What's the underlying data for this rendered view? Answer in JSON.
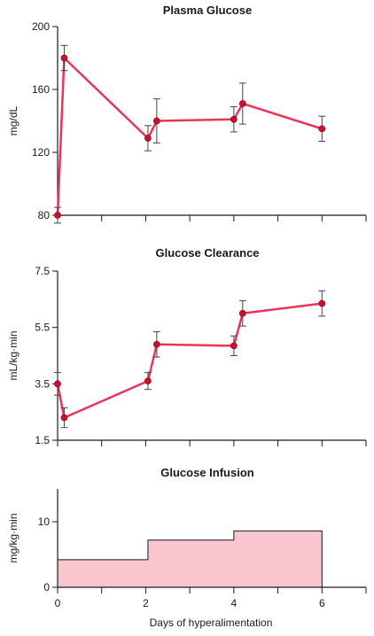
{
  "colors": {
    "line": "#e8365a",
    "marker": "#c8102e",
    "fill": "#f9c5cf",
    "axis": "#1a1a1a"
  },
  "chart_data": [
    {
      "type": "line",
      "title": "Plasma Glucose",
      "ylabel": "mg/dL",
      "xlabel": "",
      "xlim": [
        0,
        7
      ],
      "ylim": [
        80,
        200
      ],
      "yticks": [
        80,
        120,
        160,
        200
      ],
      "xticks": [
        0,
        1,
        2,
        3,
        4,
        5,
        6,
        7
      ],
      "x": [
        0,
        0.15,
        2.05,
        2.25,
        4.0,
        4.2,
        6.0
      ],
      "y": [
        80,
        180,
        129,
        140,
        141,
        151,
        135
      ],
      "err": [
        5,
        8,
        8,
        14,
        8,
        13,
        8
      ]
    },
    {
      "type": "line",
      "title": "Glucose Clearance",
      "ylabel": "mL/kg·min",
      "xlabel": "",
      "xlim": [
        0,
        7
      ],
      "ylim": [
        1.5,
        7.5
      ],
      "yticks": [
        1.5,
        3.5,
        5.5,
        7.5
      ],
      "ytick_labels": [
        "1.5",
        "3.5",
        "5.5",
        "7.5"
      ],
      "xticks": [
        0,
        1,
        2,
        3,
        4,
        5,
        6,
        7
      ],
      "x": [
        0,
        0.15,
        2.05,
        2.25,
        4.0,
        4.2,
        6.0
      ],
      "y": [
        3.5,
        2.3,
        3.6,
        4.9,
        4.85,
        6.0,
        6.35
      ],
      "err": [
        0.4,
        0.35,
        0.3,
        0.45,
        0.35,
        0.45,
        0.45
      ]
    },
    {
      "type": "area",
      "title": "Glucose Infusion",
      "ylabel": "mg/kg·min",
      "xlabel": "Days of hyperalimentation",
      "xlim": [
        0,
        7
      ],
      "ylim": [
        0,
        15
      ],
      "yticks": [
        0,
        10
      ],
      "xticks": [
        0,
        1,
        2,
        3,
        4,
        5,
        6,
        7
      ],
      "xtick_labels": [
        "0",
        "",
        "2",
        "",
        "4",
        "",
        "6",
        ""
      ],
      "step_x": [
        0,
        2.05,
        4.0,
        6.0
      ],
      "step_y": [
        4.2,
        7.2,
        8.6
      ]
    }
  ]
}
